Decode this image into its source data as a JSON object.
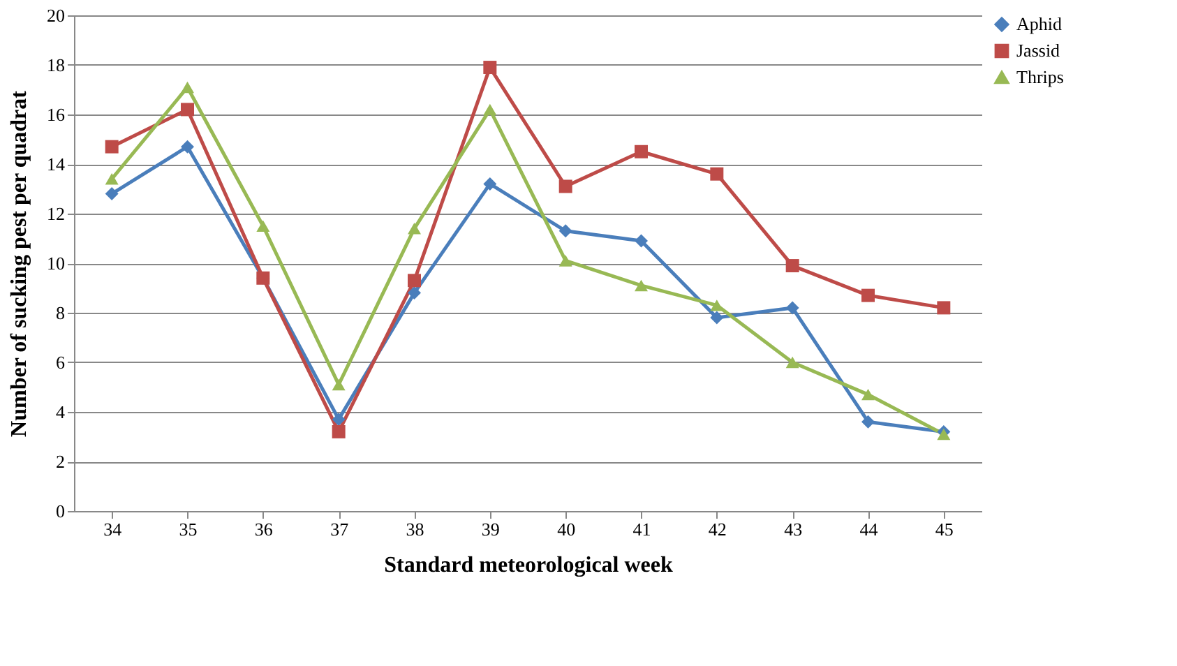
{
  "chart_data": {
    "type": "line",
    "xlabel": "Standard meteorological week",
    "ylabel": "Number of sucking pest per quadrat",
    "categories": [
      "34",
      "35",
      "36",
      "37",
      "38",
      "39",
      "40",
      "41",
      "42",
      "43",
      "44",
      "45"
    ],
    "series": [
      {
        "name": "Aphid",
        "color": "#4a7ebb",
        "marker": "diamond",
        "values": [
          12.8,
          14.7,
          9.4,
          3.7,
          8.8,
          13.2,
          11.3,
          10.9,
          7.8,
          8.2,
          3.6,
          3.2
        ]
      },
      {
        "name": "Jassid",
        "color": "#be4b48",
        "marker": "square",
        "values": [
          14.7,
          16.2,
          9.4,
          3.2,
          9.3,
          17.9,
          13.1,
          14.5,
          13.6,
          9.9,
          8.7,
          8.2
        ]
      },
      {
        "name": "Thrips",
        "color": "#98b954",
        "marker": "triangle",
        "values": [
          13.4,
          17.1,
          11.5,
          5.1,
          11.4,
          16.2,
          10.1,
          9.1,
          8.3,
          6.0,
          4.7,
          3.1
        ]
      }
    ],
    "ylim": [
      0,
      20
    ],
    "yticks": [
      0,
      2,
      4,
      6,
      8,
      10,
      12,
      14,
      16,
      18,
      20
    ],
    "grid": "y",
    "legend": "top right",
    "line_style": "solid"
  }
}
